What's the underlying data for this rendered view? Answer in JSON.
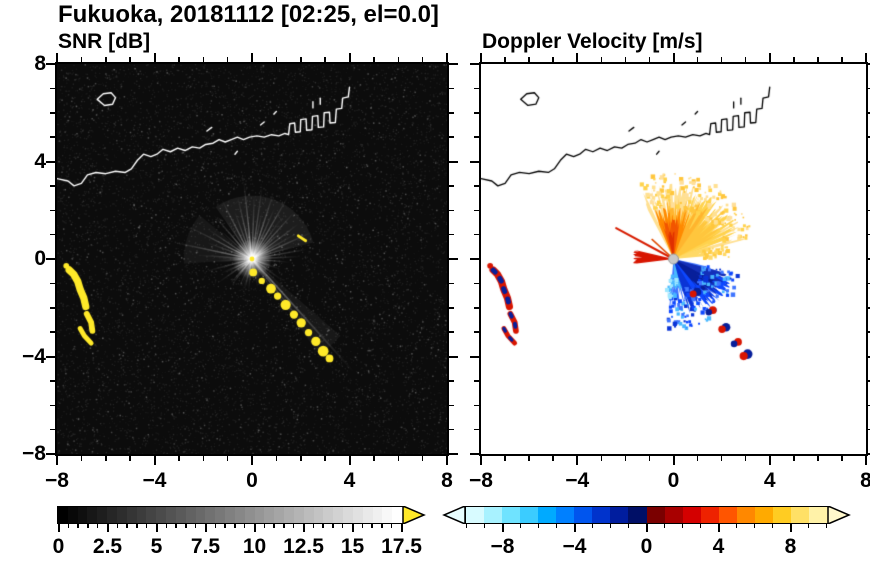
{
  "title": "Fukuoka, 20181112 [02:25, el=0.0]",
  "chart_data": {
    "type": "heatmap",
    "description": "Dual-panel radar PPI display (range +/-8 km): left panel signal-to-noise ratio, right panel Doppler velocity, with coastline overlay and ground-clutter spokes at the radar origin",
    "axes": {
      "xlim": [
        -8,
        8
      ],
      "ylim": [
        -8,
        8
      ],
      "xticks": [
        -8,
        -4,
        0,
        4,
        8
      ],
      "xtick_labels": [
        "−8",
        "−4",
        "0",
        "4",
        "8"
      ],
      "yticks": [
        8,
        4,
        0,
        -4,
        -8
      ],
      "ytick_labels": [
        "8",
        "4",
        "0",
        "−4",
        "−8"
      ],
      "minor_step": 1,
      "grid": false
    },
    "panels": [
      {
        "title": "SNR [dB]",
        "background": "#0c0c0c",
        "value_range": [
          0,
          17.5
        ],
        "over_color": "#ffe929",
        "noise": {
          "count": 9000,
          "alpha_min": 0.03,
          "alpha_max": 0.12,
          "bright_count": 900,
          "bright_alpha": 0.22
        },
        "haze": [
          [
            15,
            125,
            2.6,
            0.07
          ],
          [
            140,
            185,
            2.8,
            0.05
          ],
          [
            -55,
            -40,
            4.8,
            0.05
          ]
        ],
        "spokes": [
          [
            96,
            3.2,
            0.5
          ],
          [
            88,
            2.6,
            0.42
          ],
          [
            82,
            3.0,
            0.38
          ],
          [
            78,
            2.0,
            0.32
          ],
          [
            72,
            2.9,
            0.48
          ],
          [
            66,
            2.3,
            0.38
          ],
          [
            60,
            3.0,
            0.44
          ],
          [
            54,
            2.0,
            0.34
          ],
          [
            48,
            2.6,
            0.42
          ],
          [
            43,
            1.7,
            0.3
          ],
          [
            37,
            2.4,
            0.4
          ],
          [
            30,
            2.0,
            0.34
          ],
          [
            24,
            2.7,
            0.4
          ],
          [
            17,
            1.8,
            0.3
          ],
          [
            10,
            2.3,
            0.36
          ],
          [
            3,
            2.0,
            0.3
          ],
          [
            -5,
            1.6,
            0.26
          ],
          [
            -20,
            1.3,
            0.2
          ],
          [
            -35,
            1.6,
            0.24
          ],
          [
            -48,
            6.3,
            0.4,
            1.8
          ],
          [
            -52,
            3.5,
            0.3
          ],
          [
            -57,
            2.2,
            0.2
          ],
          [
            -70,
            1.2,
            0.18
          ],
          [
            -85,
            1.0,
            0.16
          ],
          [
            103,
            2.6,
            0.44
          ],
          [
            110,
            2.1,
            0.38
          ],
          [
            117,
            2.8,
            0.44
          ],
          [
            124,
            1.9,
            0.3
          ],
          [
            131,
            2.4,
            0.4
          ],
          [
            138,
            1.7,
            0.3
          ],
          [
            146,
            2.2,
            0.36
          ],
          [
            153,
            2.9,
            0.4
          ],
          [
            160,
            2.0,
            0.3
          ],
          [
            168,
            3.3,
            0.44
          ],
          [
            176,
            2.2,
            0.3
          ],
          [
            184,
            1.6,
            0.26
          ],
          [
            195,
            1.9,
            0.3
          ],
          [
            205,
            1.4,
            0.24
          ],
          [
            215,
            1.7,
            0.3
          ],
          [
            228,
            1.1,
            0.2
          ],
          [
            240,
            0.9,
            0.16
          ]
        ],
        "dash": [
          [
            1.9,
            0.95
          ],
          [
            2.2,
            0.75
          ]
        ],
        "center_dot_radius": 0.1
      },
      {
        "title": "Doppler Velocity [m/s]",
        "background": "#ffffff",
        "value_range": [
          -10,
          10
        ],
        "wedges": [
          [
            15,
            118,
            3.1,
            0.9,
            "#ffe091"
          ],
          [
            20,
            72,
            3.0,
            0.8,
            "#ffd34d"
          ],
          [
            28,
            56,
            2.3,
            0.55,
            "#ffc63d"
          ],
          [
            55,
            102,
            2.55,
            0.65,
            "#ffb52e"
          ],
          [
            70,
            113,
            2.15,
            0.55,
            "#ff8a00"
          ],
          [
            80,
            108,
            1.65,
            0.45,
            "#f25500"
          ],
          [
            88,
            103,
            1.15,
            0.3,
            "#e03000"
          ],
          [
            5,
            24,
            1.7,
            0.7,
            "#ffd966"
          ],
          [
            167,
            187,
            1.7,
            0.3,
            "#d81500"
          ],
          [
            -95,
            -12,
            2.1,
            0.9,
            "#3f75ff"
          ],
          [
            -88,
            -66,
            1.35,
            0.5,
            "#49b8ff"
          ],
          [
            -75,
            -28,
            2.4,
            0.8,
            "#0a34d6"
          ],
          [
            -58,
            -20,
            2.6,
            0.75,
            "#0d47ff"
          ],
          [
            -45,
            -15,
            2.3,
            0.6,
            "#1430b8"
          ],
          [
            -50,
            -28,
            1.9,
            0.45,
            "#071f9a"
          ]
        ],
        "speckles": [
          {
            "a0": 15,
            "a1": 115,
            "r0": 2.1,
            "r1": 3.5,
            "n": 150,
            "s": 3,
            "colors": [
              "#ffe091",
              "#ffd34d",
              "#ffc63d",
              "#ffdf9a"
            ]
          },
          {
            "a0": 0,
            "a1": 16,
            "r0": 1.2,
            "r1": 2.3,
            "n": 30,
            "s": 3,
            "colors": [
              "#ffd966",
              "#ffcc44"
            ]
          },
          {
            "a0": -95,
            "a1": -12,
            "r0": 1.3,
            "r1": 2.9,
            "n": 130,
            "s": 3,
            "colors": [
              "#3f75ff",
              "#0a34d6",
              "#0d47ff",
              "#49b8ff"
            ]
          },
          {
            "a0": -102,
            "a1": -80,
            "r0": 0.7,
            "r1": 1.6,
            "n": 25,
            "s": 3,
            "colors": [
              "#9fe8ff",
              "#49b8ff"
            ]
          }
        ],
        "rays": [
          {
            "a": 152,
            "len": 2.7,
            "w": 2,
            "color": "#d81c00"
          },
          {
            "a": 138,
            "len": 1.2,
            "w": 1.5,
            "color": "#e04a00"
          }
        ],
        "arcs_color": "#d81500",
        "arcs_accent": "#071f9a",
        "vel_chain": [
          [
            0.9,
            -1.35,
            0.17
          ],
          [
            1.55,
            -2.1,
            0.16
          ],
          [
            2.1,
            -2.8,
            0.18
          ],
          [
            2.6,
            -3.4,
            0.16
          ],
          [
            3.0,
            -3.9,
            0.2
          ]
        ],
        "center_dot_color": "#c8c8c8"
      }
    ],
    "arcs": [
      {
        "path": [
          [
            -7.5,
            -0.45
          ],
          [
            -7.32,
            -0.62
          ],
          [
            -7.15,
            -0.92
          ],
          [
            -7.05,
            -1.25
          ],
          [
            -6.9,
            -1.6
          ],
          [
            -6.82,
            -1.95
          ]
        ],
        "w": 0.3
      },
      {
        "path": [
          [
            -6.78,
            -2.25
          ],
          [
            -6.6,
            -2.6
          ],
          [
            -6.55,
            -2.95
          ]
        ],
        "w": 0.24
      },
      {
        "path": [
          [
            -7.05,
            -2.85
          ],
          [
            -6.88,
            -3.15
          ],
          [
            -6.6,
            -3.45
          ]
        ],
        "w": 0.2
      }
    ],
    "arc_dot": [
      -7.62,
      -0.28,
      0.12
    ],
    "chain": [
      [
        0.05,
        -0.55,
        0.16
      ],
      [
        0.4,
        -0.9,
        0.13
      ],
      [
        0.78,
        -1.22,
        0.2
      ],
      [
        1.05,
        -1.52,
        0.15
      ],
      [
        1.38,
        -1.88,
        0.21
      ],
      [
        1.72,
        -2.28,
        0.17
      ],
      [
        2.02,
        -2.62,
        0.19
      ],
      [
        2.32,
        -3.02,
        0.15
      ],
      [
        2.62,
        -3.38,
        0.19
      ],
      [
        2.92,
        -3.78,
        0.22
      ],
      [
        3.18,
        -4.08,
        0.16
      ]
    ],
    "coastline": [
      [
        [
          -8.0,
          3.3
        ],
        [
          -7.55,
          3.2
        ],
        [
          -7.3,
          3.0
        ],
        [
          -7.0,
          3.1
        ],
        [
          -6.75,
          3.45
        ],
        [
          -6.4,
          3.55
        ],
        [
          -6.0,
          3.5
        ],
        [
          -5.6,
          3.6
        ],
        [
          -5.2,
          3.55
        ],
        [
          -4.95,
          3.7
        ],
        [
          -4.7,
          4.05
        ],
        [
          -4.45,
          4.3
        ],
        [
          -4.15,
          4.2
        ],
        [
          -3.9,
          4.3
        ],
        [
          -3.65,
          4.5
        ],
        [
          -3.35,
          4.4
        ],
        [
          -3.05,
          4.55
        ],
        [
          -2.75,
          4.45
        ],
        [
          -2.45,
          4.6
        ],
        [
          -2.15,
          4.55
        ],
        [
          -1.9,
          4.7
        ],
        [
          -1.6,
          4.75
        ],
        [
          -1.35,
          4.9
        ],
        [
          -1.1,
          4.8
        ],
        [
          -0.85,
          4.9
        ],
        [
          -0.6,
          5.0
        ],
        [
          -0.35,
          4.9
        ],
        [
          -0.1,
          5.0
        ],
        [
          0.2,
          5.05
        ],
        [
          0.5,
          5.0
        ],
        [
          0.8,
          5.1
        ],
        [
          1.1,
          5.05
        ],
        [
          1.35,
          5.15
        ],
        [
          1.5,
          5.1
        ],
        [
          1.55,
          5.55
        ],
        [
          1.75,
          5.58
        ],
        [
          1.78,
          5.2
        ],
        [
          1.98,
          5.22
        ],
        [
          2.0,
          5.72
        ],
        [
          2.22,
          5.75
        ],
        [
          2.24,
          5.28
        ],
        [
          2.46,
          5.3
        ],
        [
          2.48,
          5.85
        ],
        [
          2.7,
          5.88
        ],
        [
          2.72,
          5.4
        ],
        [
          2.94,
          5.42
        ],
        [
          2.96,
          6.0
        ],
        [
          3.18,
          6.02
        ],
        [
          3.2,
          5.58
        ],
        [
          3.42,
          5.6
        ],
        [
          3.46,
          6.15
        ],
        [
          3.68,
          6.18
        ],
        [
          3.72,
          6.6
        ],
        [
          3.95,
          6.65
        ],
        [
          4.0,
          7.05
        ]
      ],
      [
        [
          -6.35,
          6.55
        ],
        [
          -6.1,
          6.78
        ],
        [
          -5.78,
          6.82
        ],
        [
          -5.6,
          6.62
        ],
        [
          -5.72,
          6.35
        ],
        [
          -6.05,
          6.3
        ],
        [
          -6.35,
          6.55
        ]
      ],
      [
        [
          -1.85,
          5.25
        ],
        [
          -1.65,
          5.4
        ]
      ],
      [
        [
          -0.7,
          4.3
        ],
        [
          -0.6,
          4.42
        ]
      ],
      [
        [
          0.35,
          5.5
        ],
        [
          0.5,
          5.62
        ]
      ],
      [
        [
          2.5,
          6.2
        ],
        [
          2.5,
          6.45
        ]
      ],
      [
        [
          2.8,
          6.35
        ],
        [
          2.8,
          6.6
        ]
      ],
      [
        [
          0.9,
          5.95
        ],
        [
          1.0,
          6.05
        ]
      ]
    ],
    "colorbars": [
      {
        "min": 0,
        "max": 17.5,
        "minor_step": 0.5,
        "major_values": [
          0,
          2.5,
          5,
          7.5,
          10,
          12.5,
          15,
          17.5
        ],
        "tick_labels": [
          "0",
          "2.5",
          "5",
          "7.5",
          "10",
          "12.5",
          "15",
          "17.5"
        ],
        "segments": 35,
        "ramp_from": "#000000",
        "ramp_to": "#ffffff",
        "over_color": "#ffe929",
        "arrow_left": false,
        "arrow_right": true
      },
      {
        "min": -10,
        "max": 10,
        "minor_step": 1,
        "major_values": [
          -8,
          -4,
          0,
          4,
          8
        ],
        "tick_labels": [
          "−8",
          "−4",
          "0",
          "4",
          "8"
        ],
        "colors": [
          "#d8fbff",
          "#a8f2ff",
          "#6fe3ff",
          "#3bccff",
          "#00aaff",
          "#0080ff",
          "#0055ee",
          "#0033cc",
          "#001d9e",
          "#000f66",
          "#7a0000",
          "#a80000",
          "#d40000",
          "#ee2200",
          "#ff5500",
          "#ff8800",
          "#ffaa00",
          "#ffcc22",
          "#ffe066",
          "#fff2a8"
        ],
        "under_color": "#e8feff",
        "over_color": "#fff8cc",
        "arrow_left": true,
        "arrow_right": true
      }
    ]
  }
}
